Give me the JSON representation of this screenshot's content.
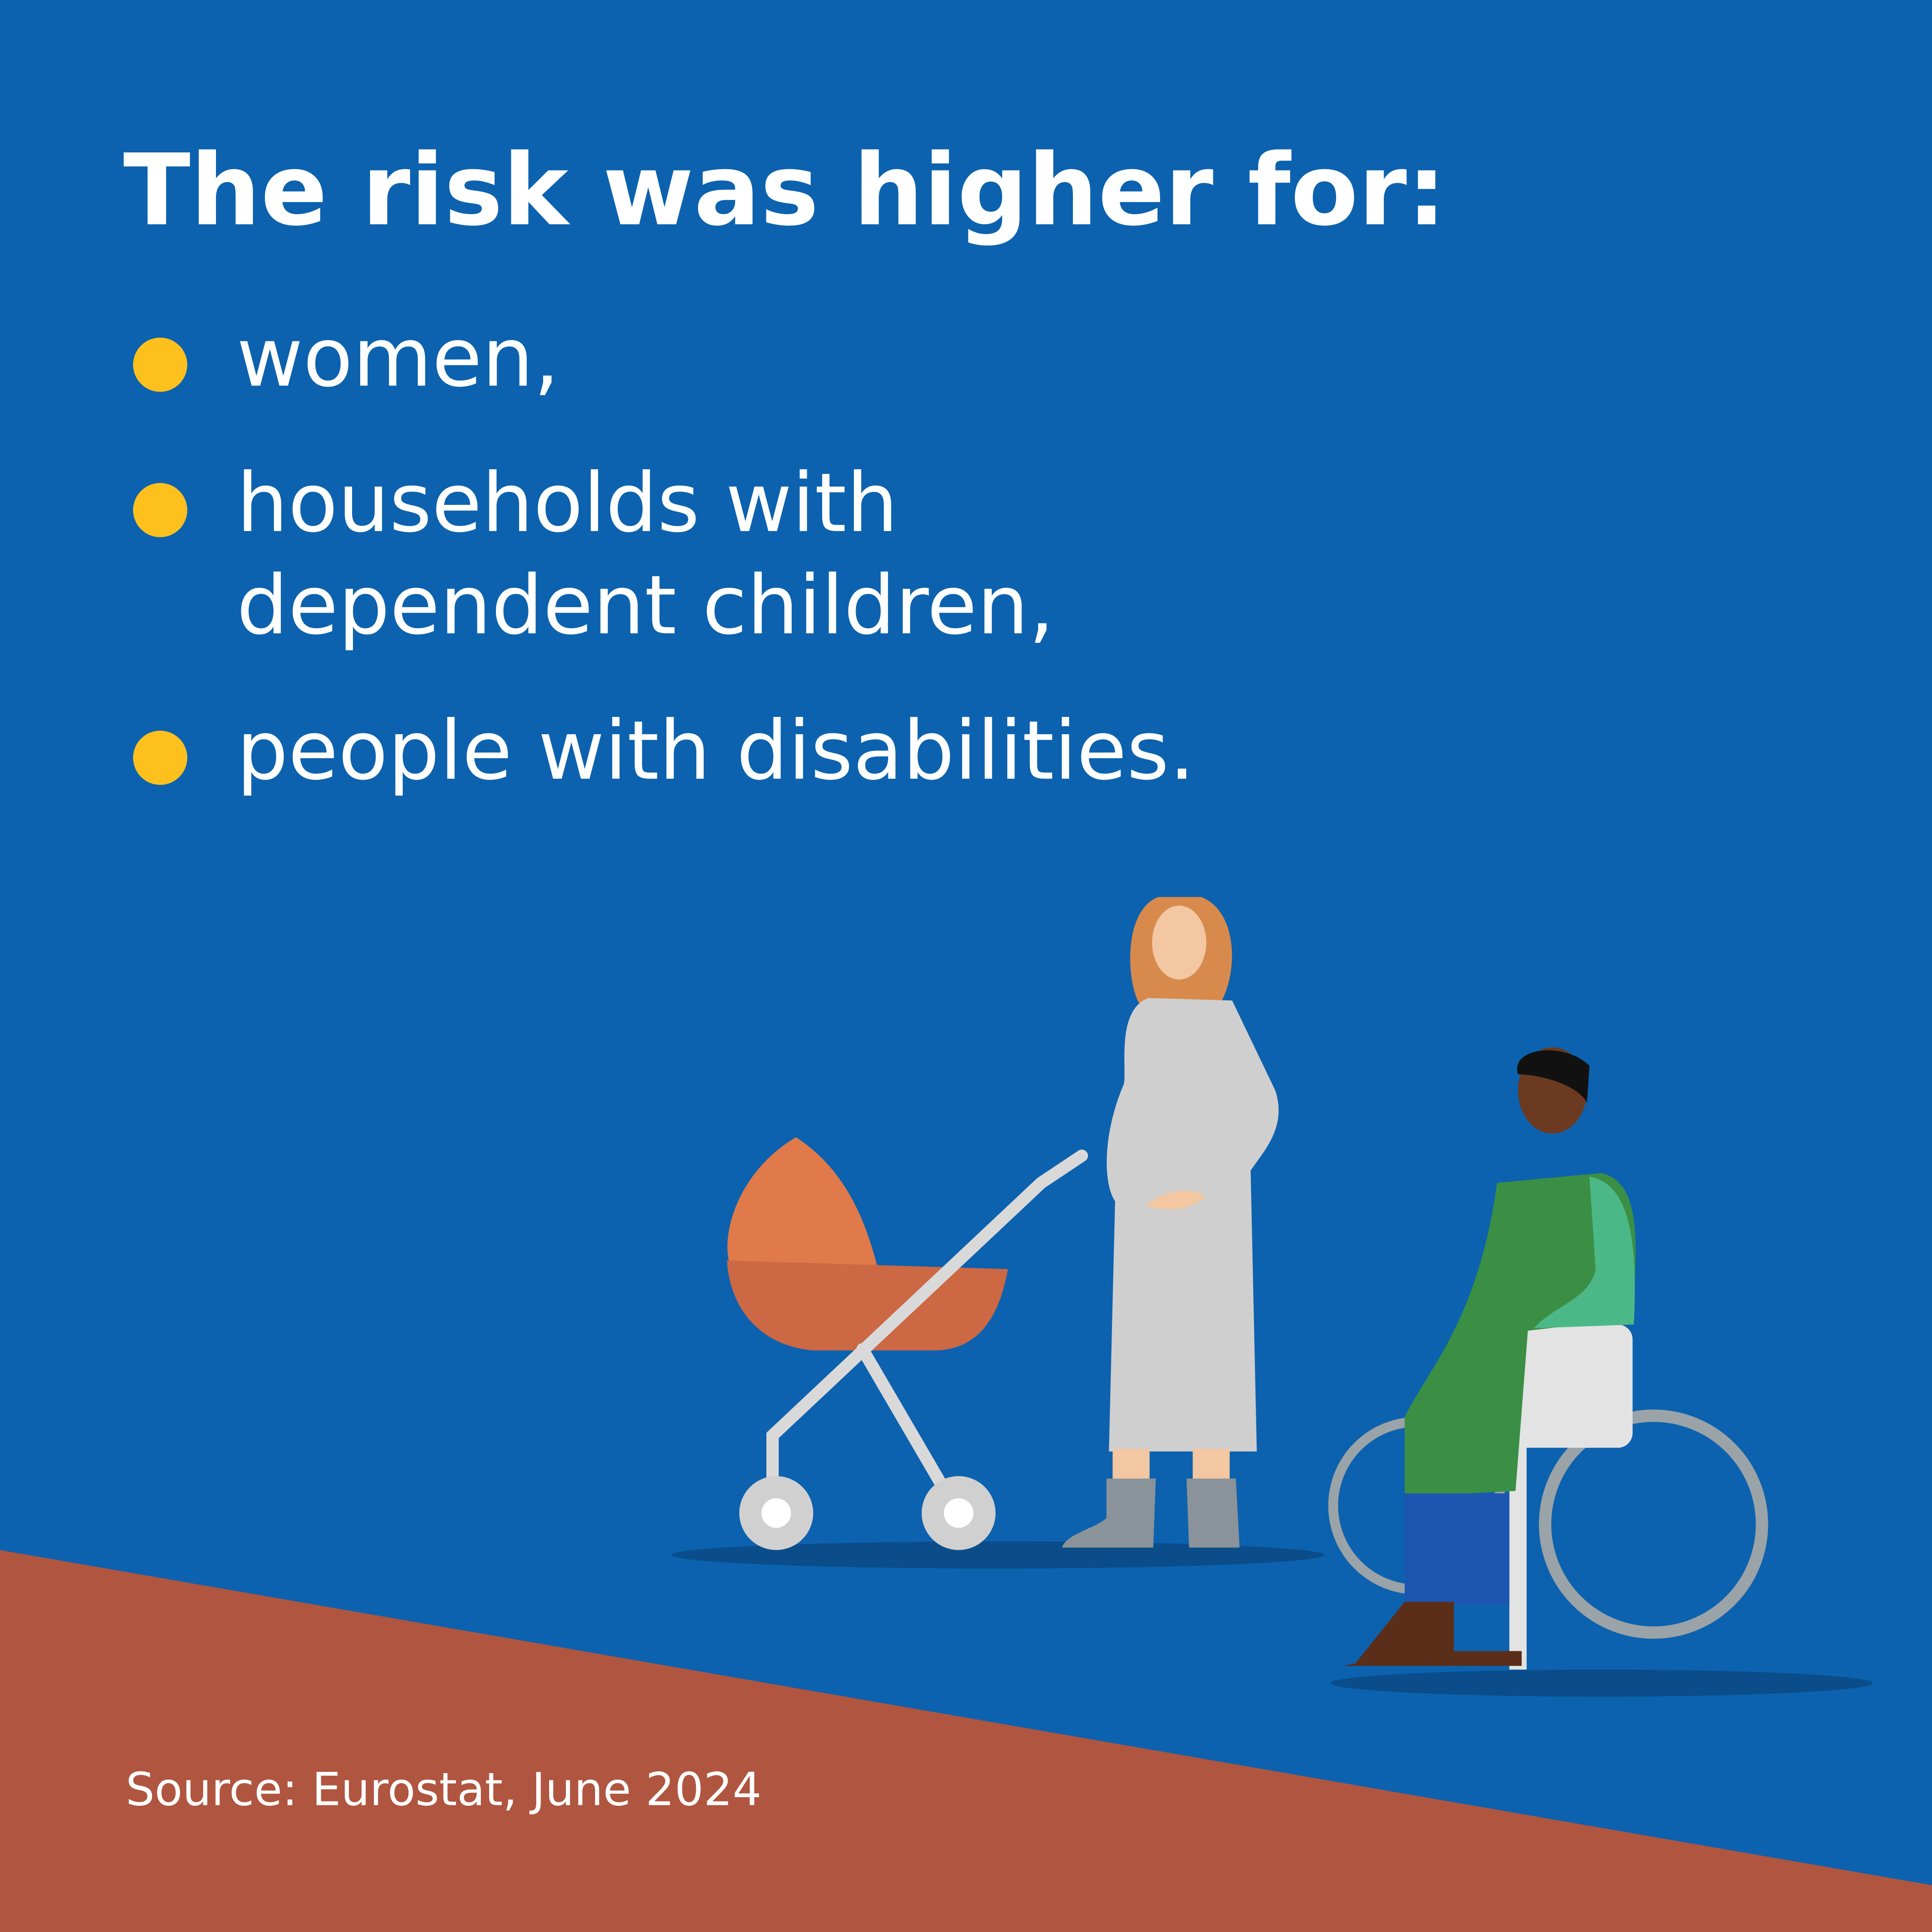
{
  "header": {
    "title": "The risk was higher for:"
  },
  "items": [
    [
      "women,"
    ],
    [
      "households with",
      "dependent children,"
    ],
    [
      "people with disabilities."
    ]
  ],
  "footer": {
    "source": "Source: Eurostat, June 2024"
  }
}
